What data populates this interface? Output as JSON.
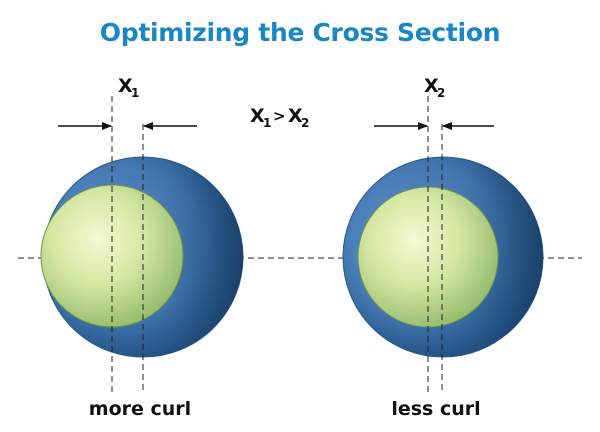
{
  "title": "Optimizing the Cross Section",
  "comparison": {
    "left_symbol": "X",
    "left_subscript": "1",
    "operator": ">",
    "right_symbol": "X",
    "right_subscript": "2"
  },
  "left": {
    "label": "X",
    "subscript": "1",
    "caption": "more curl"
  },
  "right": {
    "label": "X",
    "subscript": "2",
    "caption": "less curl"
  },
  "colors": {
    "title": "#1b86c6",
    "outer_ring_light": "#5a8fc9",
    "outer_ring_dark": "#1e4c7a",
    "inner_core_light": "#f3f8cf",
    "inner_core_dark": "#8fb96a",
    "lines": "#222222"
  }
}
